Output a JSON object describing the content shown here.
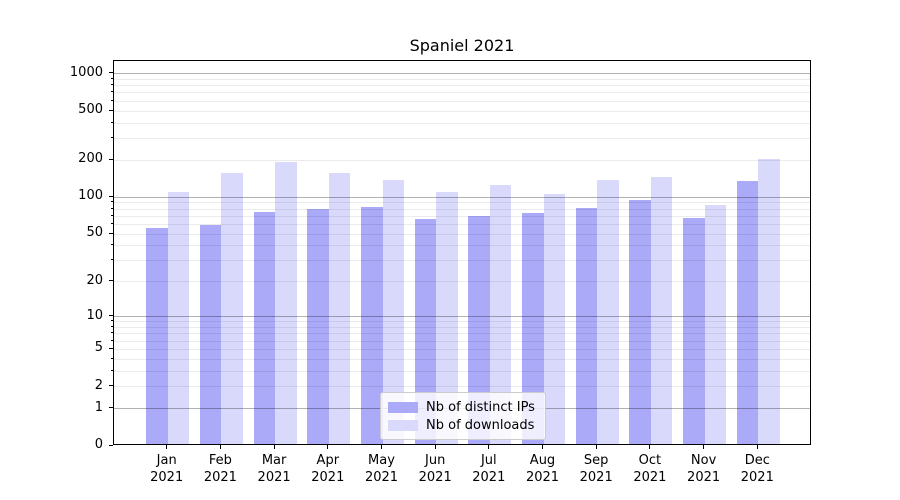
{
  "chart_data": {
    "type": "bar",
    "title": "Spaniel 2021",
    "year_label": "2021",
    "months": [
      "Jan",
      "Feb",
      "Mar",
      "Apr",
      "May",
      "Jun",
      "Jul",
      "Aug",
      "Sep",
      "Oct",
      "Nov",
      "Dec"
    ],
    "series": [
      {
        "name": "Nb of distinct IPs",
        "color": "#aaaaf8",
        "values": [
          54,
          57,
          73,
          78,
          81,
          64,
          68,
          72,
          79,
          91,
          65,
          131
        ]
      },
      {
        "name": "Nb of downloads",
        "color": "#d9d9fb",
        "values": [
          106,
          152,
          185,
          152,
          134,
          107,
          122,
          102,
          134,
          142,
          84,
          197
        ]
      }
    ],
    "y_ticks": [
      0,
      1,
      2,
      5,
      10,
      20,
      50,
      100,
      200,
      500,
      1000
    ],
    "scale": "log1p",
    "ylim": [
      0,
      1265
    ],
    "grid": "both",
    "legend_position": "lower center",
    "colors": {
      "major_grid": "rgba(0,0,0,0.30)",
      "minor_grid": "rgba(0,0,0,0.08)",
      "spine": "#000000",
      "text": "#000000"
    }
  }
}
